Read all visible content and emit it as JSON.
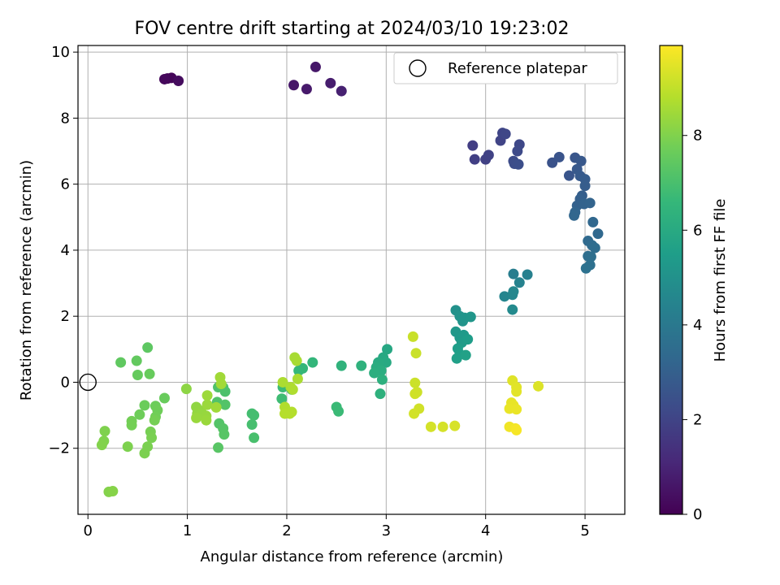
{
  "chart_data": {
    "type": "scatter",
    "title": "FOV centre drift starting at 2024/03/10 19:23:02",
    "xlabel": "Angular distance from reference (arcmin)",
    "ylabel": "Rotation from reference (arcmin)",
    "xlim": [
      -0.1,
      5.4
    ],
    "ylim": [
      -4.0,
      10.2
    ],
    "xticks": [
      0,
      1,
      2,
      3,
      4,
      5
    ],
    "xtick_labels": [
      "0",
      "1",
      "2",
      "3",
      "4",
      "5"
    ],
    "yticks": [
      -2,
      0,
      2,
      4,
      6,
      8,
      10
    ],
    "ytick_labels": [
      "−2",
      "0",
      "2",
      "4",
      "6",
      "8",
      "10"
    ],
    "grid": true,
    "legend": {
      "position": "top-right",
      "entries": [
        "Reference platepar"
      ]
    },
    "reference_point": {
      "x": 0,
      "y": 0
    },
    "colorbar": {
      "label": "Hours from first FF file",
      "range": [
        0,
        9.9
      ],
      "ticks": [
        0,
        2,
        4,
        6,
        8
      ],
      "tick_labels": [
        "0",
        "2",
        "4",
        "6",
        "8"
      ],
      "colormap": "viridis"
    },
    "points": [
      {
        "x": 0.8,
        "y": 9.2,
        "c": 0.1
      },
      {
        "x": 0.84,
        "y": 9.22,
        "c": 0.15
      },
      {
        "x": 0.77,
        "y": 9.18,
        "c": 0.2
      },
      {
        "x": 0.91,
        "y": 9.13,
        "c": 0.3
      },
      {
        "x": 2.07,
        "y": 9.0,
        "c": 0.6
      },
      {
        "x": 2.29,
        "y": 9.55,
        "c": 0.65
      },
      {
        "x": 2.2,
        "y": 8.88,
        "c": 0.7
      },
      {
        "x": 2.44,
        "y": 9.06,
        "c": 0.8
      },
      {
        "x": 2.55,
        "y": 8.82,
        "c": 0.9
      },
      {
        "x": 3.87,
        "y": 7.17,
        "c": 1.8
      },
      {
        "x": 3.89,
        "y": 6.75,
        "c": 1.85
      },
      {
        "x": 4.0,
        "y": 6.75,
        "c": 1.9
      },
      {
        "x": 4.03,
        "y": 6.88,
        "c": 1.95
      },
      {
        "x": 4.15,
        "y": 7.32,
        "c": 2.0
      },
      {
        "x": 4.17,
        "y": 7.55,
        "c": 2.05
      },
      {
        "x": 4.2,
        "y": 7.52,
        "c": 2.1
      },
      {
        "x": 4.34,
        "y": 7.2,
        "c": 2.15
      },
      {
        "x": 4.32,
        "y": 7.0,
        "c": 2.2
      },
      {
        "x": 4.28,
        "y": 6.7,
        "c": 2.25
      },
      {
        "x": 4.29,
        "y": 6.62,
        "c": 2.3
      },
      {
        "x": 4.33,
        "y": 6.6,
        "c": 2.35
      },
      {
        "x": 4.67,
        "y": 6.65,
        "c": 2.5
      },
      {
        "x": 4.74,
        "y": 6.82,
        "c": 2.55
      },
      {
        "x": 4.84,
        "y": 6.26,
        "c": 2.6
      },
      {
        "x": 4.9,
        "y": 6.8,
        "c": 2.65
      },
      {
        "x": 4.96,
        "y": 6.7,
        "c": 2.7
      },
      {
        "x": 4.92,
        "y": 6.45,
        "c": 2.75
      },
      {
        "x": 4.95,
        "y": 6.25,
        "c": 2.8
      },
      {
        "x": 5.0,
        "y": 6.15,
        "c": 2.85
      },
      {
        "x": 5.0,
        "y": 5.95,
        "c": 2.9
      },
      {
        "x": 4.97,
        "y": 5.65,
        "c": 2.95
      },
      {
        "x": 4.95,
        "y": 5.55,
        "c": 3.0
      },
      {
        "x": 4.92,
        "y": 5.35,
        "c": 3.05
      },
      {
        "x": 4.99,
        "y": 5.4,
        "c": 3.1
      },
      {
        "x": 5.05,
        "y": 5.43,
        "c": 3.15
      },
      {
        "x": 4.9,
        "y": 5.15,
        "c": 3.2
      },
      {
        "x": 4.89,
        "y": 5.05,
        "c": 3.25
      },
      {
        "x": 5.08,
        "y": 4.85,
        "c": 3.3
      },
      {
        "x": 5.13,
        "y": 4.5,
        "c": 3.35
      },
      {
        "x": 5.03,
        "y": 4.28,
        "c": 3.4
      },
      {
        "x": 5.07,
        "y": 4.15,
        "c": 3.45
      },
      {
        "x": 5.1,
        "y": 4.07,
        "c": 3.5
      },
      {
        "x": 5.03,
        "y": 3.82,
        "c": 3.55
      },
      {
        "x": 5.06,
        "y": 3.8,
        "c": 3.6
      },
      {
        "x": 5.05,
        "y": 3.55,
        "c": 3.65
      },
      {
        "x": 5.01,
        "y": 3.45,
        "c": 3.7
      },
      {
        "x": 4.28,
        "y": 3.28,
        "c": 4.2
      },
      {
        "x": 4.42,
        "y": 3.26,
        "c": 4.3
      },
      {
        "x": 4.34,
        "y": 3.02,
        "c": 4.4
      },
      {
        "x": 4.19,
        "y": 2.6,
        "c": 4.5
      },
      {
        "x": 4.27,
        "y": 2.65,
        "c": 4.55
      },
      {
        "x": 4.28,
        "y": 2.75,
        "c": 4.6
      },
      {
        "x": 4.27,
        "y": 2.2,
        "c": 4.7
      },
      {
        "x": 3.7,
        "y": 2.18,
        "c": 5.0
      },
      {
        "x": 3.74,
        "y": 2.0,
        "c": 5.05
      },
      {
        "x": 3.77,
        "y": 1.85,
        "c": 5.1
      },
      {
        "x": 3.79,
        "y": 1.95,
        "c": 5.15
      },
      {
        "x": 3.85,
        "y": 1.98,
        "c": 5.2
      },
      {
        "x": 3.7,
        "y": 1.53,
        "c": 5.25
      },
      {
        "x": 3.74,
        "y": 1.35,
        "c": 5.3
      },
      {
        "x": 3.78,
        "y": 1.43,
        "c": 5.35
      },
      {
        "x": 3.76,
        "y": 1.2,
        "c": 5.4
      },
      {
        "x": 3.82,
        "y": 1.3,
        "c": 5.45
      },
      {
        "x": 3.72,
        "y": 1.02,
        "c": 5.5
      },
      {
        "x": 3.74,
        "y": 0.85,
        "c": 5.55
      },
      {
        "x": 3.71,
        "y": 0.72,
        "c": 5.6
      },
      {
        "x": 3.8,
        "y": 0.82,
        "c": 5.65
      },
      {
        "x": 3.01,
        "y": 1.0,
        "c": 5.9
      },
      {
        "x": 2.97,
        "y": 0.75,
        "c": 5.95
      },
      {
        "x": 3.0,
        "y": 0.6,
        "c": 6.0
      },
      {
        "x": 2.92,
        "y": 0.6,
        "c": 6.05
      },
      {
        "x": 2.9,
        "y": 0.45,
        "c": 6.1
      },
      {
        "x": 2.95,
        "y": 0.35,
        "c": 6.15
      },
      {
        "x": 2.88,
        "y": 0.28,
        "c": 6.2
      },
      {
        "x": 2.96,
        "y": 0.08,
        "c": 6.25
      },
      {
        "x": 2.94,
        "y": -0.35,
        "c": 6.3
      },
      {
        "x": 2.75,
        "y": 0.5,
        "c": 6.35
      },
      {
        "x": 2.55,
        "y": 0.5,
        "c": 6.4
      },
      {
        "x": 2.26,
        "y": 0.6,
        "c": 6.5
      },
      {
        "x": 2.16,
        "y": 0.42,
        "c": 6.55
      },
      {
        "x": 2.12,
        "y": 0.35,
        "c": 6.6
      },
      {
        "x": 2.5,
        "y": -0.75,
        "c": 6.7
      },
      {
        "x": 2.52,
        "y": -0.88,
        "c": 6.72
      },
      {
        "x": 1.96,
        "y": -0.15,
        "c": 6.75
      },
      {
        "x": 1.95,
        "y": -0.5,
        "c": 6.8
      },
      {
        "x": 2.05,
        "y": -0.22,
        "c": 6.85
      },
      {
        "x": 1.65,
        "y": -0.95,
        "c": 6.9
      },
      {
        "x": 1.67,
        "y": -1.0,
        "c": 6.92
      },
      {
        "x": 1.65,
        "y": -1.28,
        "c": 6.95
      },
      {
        "x": 1.67,
        "y": -1.68,
        "c": 7.0
      },
      {
        "x": 1.38,
        "y": -0.28,
        "c": 7.05
      },
      {
        "x": 1.36,
        "y": -0.15,
        "c": 7.08
      },
      {
        "x": 1.31,
        "y": -0.15,
        "c": 7.1
      },
      {
        "x": 1.3,
        "y": -0.6,
        "c": 7.15
      },
      {
        "x": 1.38,
        "y": -0.68,
        "c": 7.18
      },
      {
        "x": 1.32,
        "y": -1.25,
        "c": 7.2
      },
      {
        "x": 1.36,
        "y": -1.4,
        "c": 7.25
      },
      {
        "x": 1.37,
        "y": -1.58,
        "c": 7.28
      },
      {
        "x": 1.31,
        "y": -1.98,
        "c": 7.3
      },
      {
        "x": 0.6,
        "y": 1.05,
        "c": 7.4
      },
      {
        "x": 0.33,
        "y": 0.6,
        "c": 7.45
      },
      {
        "x": 0.49,
        "y": 0.65,
        "c": 7.5
      },
      {
        "x": 0.5,
        "y": 0.22,
        "c": 7.55
      },
      {
        "x": 0.62,
        "y": 0.25,
        "c": 7.58
      },
      {
        "x": 0.77,
        "y": -0.48,
        "c": 7.6
      },
      {
        "x": 0.57,
        "y": -0.7,
        "c": 7.65
      },
      {
        "x": 0.68,
        "y": -0.72,
        "c": 7.68
      },
      {
        "x": 0.52,
        "y": -0.98,
        "c": 7.7
      },
      {
        "x": 0.7,
        "y": -0.85,
        "c": 7.72
      },
      {
        "x": 0.68,
        "y": -1.05,
        "c": 7.75
      },
      {
        "x": 0.44,
        "y": -1.18,
        "c": 7.78
      },
      {
        "x": 0.44,
        "y": -1.3,
        "c": 7.8
      },
      {
        "x": 0.67,
        "y": -1.15,
        "c": 7.82
      },
      {
        "x": 0.63,
        "y": -1.5,
        "c": 7.85
      },
      {
        "x": 0.64,
        "y": -1.68,
        "c": 7.88
      },
      {
        "x": 0.6,
        "y": -1.95,
        "c": 7.9
      },
      {
        "x": 0.57,
        "y": -2.15,
        "c": 7.92
      },
      {
        "x": 0.4,
        "y": -1.95,
        "c": 7.95
      },
      {
        "x": 0.17,
        "y": -1.48,
        "c": 7.98
      },
      {
        "x": 0.16,
        "y": -1.78,
        "c": 8.0
      },
      {
        "x": 0.14,
        "y": -1.9,
        "c": 8.02
      },
      {
        "x": 0.21,
        "y": -3.32,
        "c": 8.05
      },
      {
        "x": 0.25,
        "y": -3.3,
        "c": 8.08
      },
      {
        "x": 0.99,
        "y": -0.2,
        "c": 8.2
      },
      {
        "x": 1.09,
        "y": -0.75,
        "c": 8.25
      },
      {
        "x": 1.12,
        "y": -0.85,
        "c": 8.28
      },
      {
        "x": 1.1,
        "y": -0.95,
        "c": 8.3
      },
      {
        "x": 1.15,
        "y": -0.95,
        "c": 8.32
      },
      {
        "x": 1.19,
        "y": -1.02,
        "c": 8.35
      },
      {
        "x": 1.09,
        "y": -1.08,
        "c": 8.38
      },
      {
        "x": 1.19,
        "y": -1.15,
        "c": 8.4
      },
      {
        "x": 1.2,
        "y": -0.68,
        "c": 8.42
      },
      {
        "x": 1.2,
        "y": -0.4,
        "c": 8.45
      },
      {
        "x": 1.29,
        "y": -0.76,
        "c": 8.48
      },
      {
        "x": 1.33,
        "y": 0.15,
        "c": 8.5
      },
      {
        "x": 1.34,
        "y": -0.05,
        "c": 8.52
      },
      {
        "x": 2.08,
        "y": 0.75,
        "c": 8.6
      },
      {
        "x": 2.1,
        "y": 0.65,
        "c": 8.62
      },
      {
        "x": 2.11,
        "y": 0.1,
        "c": 8.65
      },
      {
        "x": 1.96,
        "y": 0.0,
        "c": 8.68
      },
      {
        "x": 2.04,
        "y": -0.15,
        "c": 8.7
      },
      {
        "x": 2.06,
        "y": -0.22,
        "c": 8.72
      },
      {
        "x": 1.98,
        "y": -0.75,
        "c": 8.75
      },
      {
        "x": 2.05,
        "y": -0.9,
        "c": 8.78
      },
      {
        "x": 2.03,
        "y": -0.95,
        "c": 8.8
      },
      {
        "x": 1.98,
        "y": -0.95,
        "c": 8.82
      },
      {
        "x": 3.27,
        "y": 1.38,
        "c": 9.1
      },
      {
        "x": 3.3,
        "y": 0.88,
        "c": 9.12
      },
      {
        "x": 3.29,
        "y": -0.02,
        "c": 9.15
      },
      {
        "x": 3.31,
        "y": -0.3,
        "c": 9.18
      },
      {
        "x": 3.29,
        "y": -0.35,
        "c": 9.2
      },
      {
        "x": 3.33,
        "y": -0.8,
        "c": 9.22
      },
      {
        "x": 3.28,
        "y": -0.95,
        "c": 9.25
      },
      {
        "x": 3.45,
        "y": -1.35,
        "c": 9.28
      },
      {
        "x": 3.57,
        "y": -1.35,
        "c": 9.3
      },
      {
        "x": 3.69,
        "y": -1.32,
        "c": 9.32
      },
      {
        "x": 4.53,
        "y": -0.12,
        "c": 9.4
      },
      {
        "x": 4.27,
        "y": 0.05,
        "c": 9.45
      },
      {
        "x": 4.31,
        "y": -0.15,
        "c": 9.48
      },
      {
        "x": 4.31,
        "y": -0.28,
        "c": 9.5
      },
      {
        "x": 4.26,
        "y": -0.62,
        "c": 9.55
      },
      {
        "x": 4.28,
        "y": -0.7,
        "c": 9.58
      },
      {
        "x": 4.24,
        "y": -0.8,
        "c": 9.6
      },
      {
        "x": 4.31,
        "y": -0.82,
        "c": 9.62
      },
      {
        "x": 4.24,
        "y": -1.35,
        "c": 9.7
      },
      {
        "x": 4.3,
        "y": -1.4,
        "c": 9.75
      },
      {
        "x": 4.31,
        "y": -1.45,
        "c": 9.8
      }
    ]
  }
}
